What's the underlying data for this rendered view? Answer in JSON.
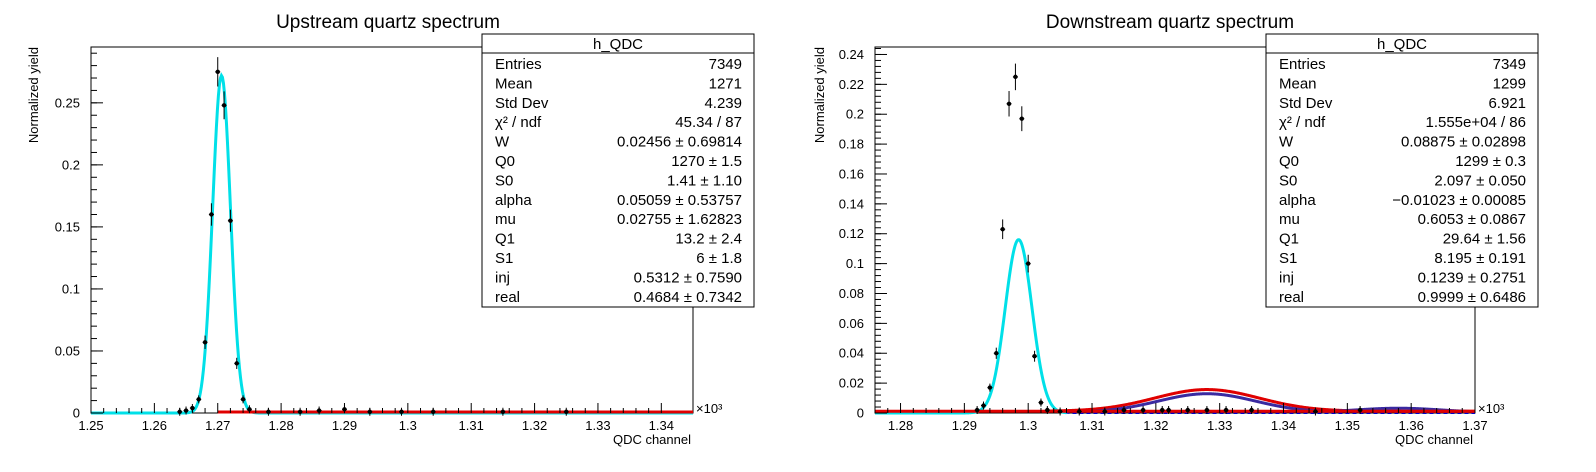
{
  "chart_data": [
    {
      "type": "scatter",
      "title": "Upstream quartz spectrum",
      "xlabel": "QDC channel",
      "ylabel": "Normalized yield",
      "x_multiplier": "×10³",
      "xlim": [
        1250,
        1345
      ],
      "ylim": [
        0,
        0.295
      ],
      "xticks": [
        "1.25",
        "1.26",
        "1.27",
        "1.28",
        "1.29",
        "1.3",
        "1.31",
        "1.32",
        "1.33",
        "1.34"
      ],
      "yticks": [
        "0",
        "0.05",
        "0.1",
        "0.15",
        "0.2",
        "0.25"
      ],
      "series": [
        {
          "kind": "points",
          "color": "#000000",
          "x": [
            1264,
            1265,
            1266,
            1267,
            1268,
            1269,
            1270,
            1271,
            1272,
            1273,
            1274,
            1275,
            1278,
            1283,
            1286,
            1290,
            1294,
            1299,
            1304,
            1315,
            1325
          ],
          "y": [
            0.001,
            0.002,
            0.004,
            0.011,
            0.057,
            0.16,
            0.275,
            0.248,
            0.155,
            0.04,
            0.011,
            0.003,
            0.001,
            0.001,
            0.002,
            0.003,
            0.001,
            0.001,
            0.001,
            0.001,
            0.001
          ]
        },
        {
          "kind": "gauss",
          "color": "#0000cc",
          "dashed": true,
          "mean": 1270.6,
          "sigma": 1.41,
          "amp": 0.272,
          "xrange": [
            1250,
            1345
          ]
        },
        {
          "kind": "gauss",
          "color": "#00e0e8",
          "mean": 1270.6,
          "sigma": 1.41,
          "amp": 0.272,
          "xrange": [
            1250,
            1345
          ]
        },
        {
          "kind": "flat",
          "color": "#e00000",
          "y": 0.0008,
          "xrange": [
            1270,
            1345
          ]
        }
      ],
      "stats": {
        "title": "h_QDC",
        "rows": [
          {
            "label": "Entries",
            "value": "7349"
          },
          {
            "label": "Mean",
            "value": "1271"
          },
          {
            "label": "Std Dev",
            "value": "4.239"
          },
          {
            "label": "χ² / ndf",
            "value": "45.34 / 87"
          },
          {
            "label": "W",
            "value": "0.02456 ± 0.69814"
          },
          {
            "label": "Q0",
            "value": "1270 ± 1.5"
          },
          {
            "label": "S0",
            "value": "1.41 ± 1.10"
          },
          {
            "label": "alpha",
            "value": "0.05059 ± 0.53757"
          },
          {
            "label": "mu",
            "value": "0.02755 ± 1.62823"
          },
          {
            "label": "Q1",
            "value": "13.2 ± 2.4"
          },
          {
            "label": "S1",
            "value": "6 ± 1.8"
          },
          {
            "label": "inj",
            "value": "0.5312 ± 0.7590"
          },
          {
            "label": "real",
            "value": "0.4684 ± 0.7342"
          }
        ]
      }
    },
    {
      "type": "scatter",
      "title": "Downstream quartz spectrum",
      "xlabel": "QDC channel",
      "ylabel": "Normalized yield",
      "x_multiplier": "×10³",
      "xlim": [
        1276,
        1370
      ],
      "ylim": [
        0,
        0.245
      ],
      "xticks": [
        "1.28",
        "1.29",
        "1.3",
        "1.31",
        "1.32",
        "1.33",
        "1.34",
        "1.35",
        "1.36",
        "1.37"
      ],
      "yticks": [
        "0",
        "0.02",
        "0.04",
        "0.06",
        "0.08",
        "0.1",
        "0.12",
        "0.14",
        "0.16",
        "0.18",
        "0.2",
        "0.22",
        "0.24"
      ],
      "series": [
        {
          "kind": "points",
          "color": "#000000",
          "x": [
            1292,
            1293,
            1294,
            1295,
            1296,
            1297,
            1298,
            1299,
            1300,
            1301,
            1302,
            1303,
            1305,
            1308,
            1312,
            1315,
            1318,
            1321,
            1322,
            1325,
            1328,
            1331,
            1335,
            1345,
            1352
          ],
          "y": [
            0.002,
            0.005,
            0.017,
            0.04,
            0.123,
            0.207,
            0.225,
            0.197,
            0.1,
            0.038,
            0.007,
            0.002,
            0.001,
            0.001,
            0.001,
            0.002,
            0.002,
            0.002,
            0.002,
            0.002,
            0.002,
            0.002,
            0.002,
            0.001,
            0.002
          ]
        },
        {
          "kind": "gauss",
          "color": "#0000cc",
          "dashed": true,
          "mean": 1298.5,
          "sigma": 2.097,
          "amp": 0.116,
          "xrange": [
            1276,
            1370
          ]
        },
        {
          "kind": "gauss",
          "color": "#00e0e8",
          "mean": 1298.5,
          "sigma": 2.097,
          "amp": 0.116,
          "xrange": [
            1276,
            1306
          ]
        },
        {
          "kind": "gauss",
          "color": "#e00000",
          "mean": 1328,
          "sigma": 8.195,
          "amp": 0.0145,
          "base": 0.0012,
          "xrange": [
            1303,
            1370
          ]
        },
        {
          "kind": "gauss",
          "color": "#3a2aa0",
          "mean": 1328,
          "sigma": 7.6,
          "amp": 0.0125,
          "base": 0.0004,
          "xrange": [
            1310,
            1346
          ]
        },
        {
          "kind": "gauss",
          "color": "#3a2aa0",
          "mean": 1358,
          "sigma": 6.5,
          "amp": 0.0028,
          "base": 0.0004,
          "xrange": [
            1346,
            1369
          ]
        },
        {
          "kind": "flat",
          "color": "#e00000",
          "y": 0.0012,
          "xrange": [
            1276,
            1370
          ]
        }
      ],
      "stats": {
        "title": "h_QDC",
        "rows": [
          {
            "label": "Entries",
            "value": "7349"
          },
          {
            "label": "Mean",
            "value": "1299"
          },
          {
            "label": "Std Dev",
            "value": "6.921"
          },
          {
            "label": "χ² / ndf",
            "value": "1.555e+04 / 86"
          },
          {
            "label": "W",
            "value": "0.08875 ± 0.02898"
          },
          {
            "label": "Q0",
            "value": "1299 ± 0.3"
          },
          {
            "label": "S0",
            "value": "2.097 ± 0.050"
          },
          {
            "label": "alpha",
            "value": "−0.01023 ± 0.00085"
          },
          {
            "label": "mu",
            "value": "0.6053 ± 0.0867"
          },
          {
            "label": "Q1",
            "value": "29.64 ± 1.56"
          },
          {
            "label": "S1",
            "value": "8.195 ± 0.191"
          },
          {
            "label": "inj",
            "value": "0.1239 ± 0.2751"
          },
          {
            "label": "real",
            "value": "0.9999 ± 0.6486"
          }
        ]
      }
    }
  ]
}
